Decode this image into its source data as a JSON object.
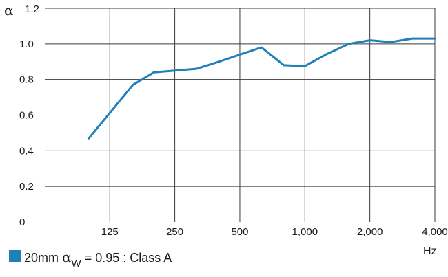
{
  "chart_data": {
    "type": "line",
    "ylabel": "α",
    "xlabel": "Hz",
    "ylim": [
      0,
      1.2
    ],
    "y_ticks": [
      "0",
      "0.2",
      "0.4",
      "0.6",
      "0.8",
      "1.0",
      "1.2"
    ],
    "x_scale": "log",
    "xlim": [
      63,
      4000
    ],
    "x_ticks": [
      {
        "value": 125,
        "label": "125"
      },
      {
        "value": 250,
        "label": "250"
      },
      {
        "value": 500,
        "label": "500"
      },
      {
        "value": 1000,
        "label": "1,000"
      },
      {
        "value": 2000,
        "label": "2,000"
      },
      {
        "value": 4000,
        "label": "4,000"
      }
    ],
    "grid": true,
    "series": [
      {
        "color": "#1f7fb8",
        "x": [
          100,
          160,
          200,
          250,
          315,
          400,
          500,
          630,
          800,
          1000,
          1250,
          1600,
          2000,
          2500,
          3150,
          4000
        ],
        "y": [
          0.47,
          0.77,
          0.84,
          0.85,
          0.86,
          0.9,
          0.94,
          0.98,
          0.88,
          0.875,
          0.94,
          1.0,
          1.02,
          1.01,
          1.03,
          1.03
        ]
      }
    ],
    "legend": {
      "position": "bottom-left",
      "color": "#1f7fb8",
      "label_prefix": "20mm ",
      "symbol": "α",
      "subscript": "W",
      "label_suffix": " = 0.95 : Class A"
    }
  }
}
